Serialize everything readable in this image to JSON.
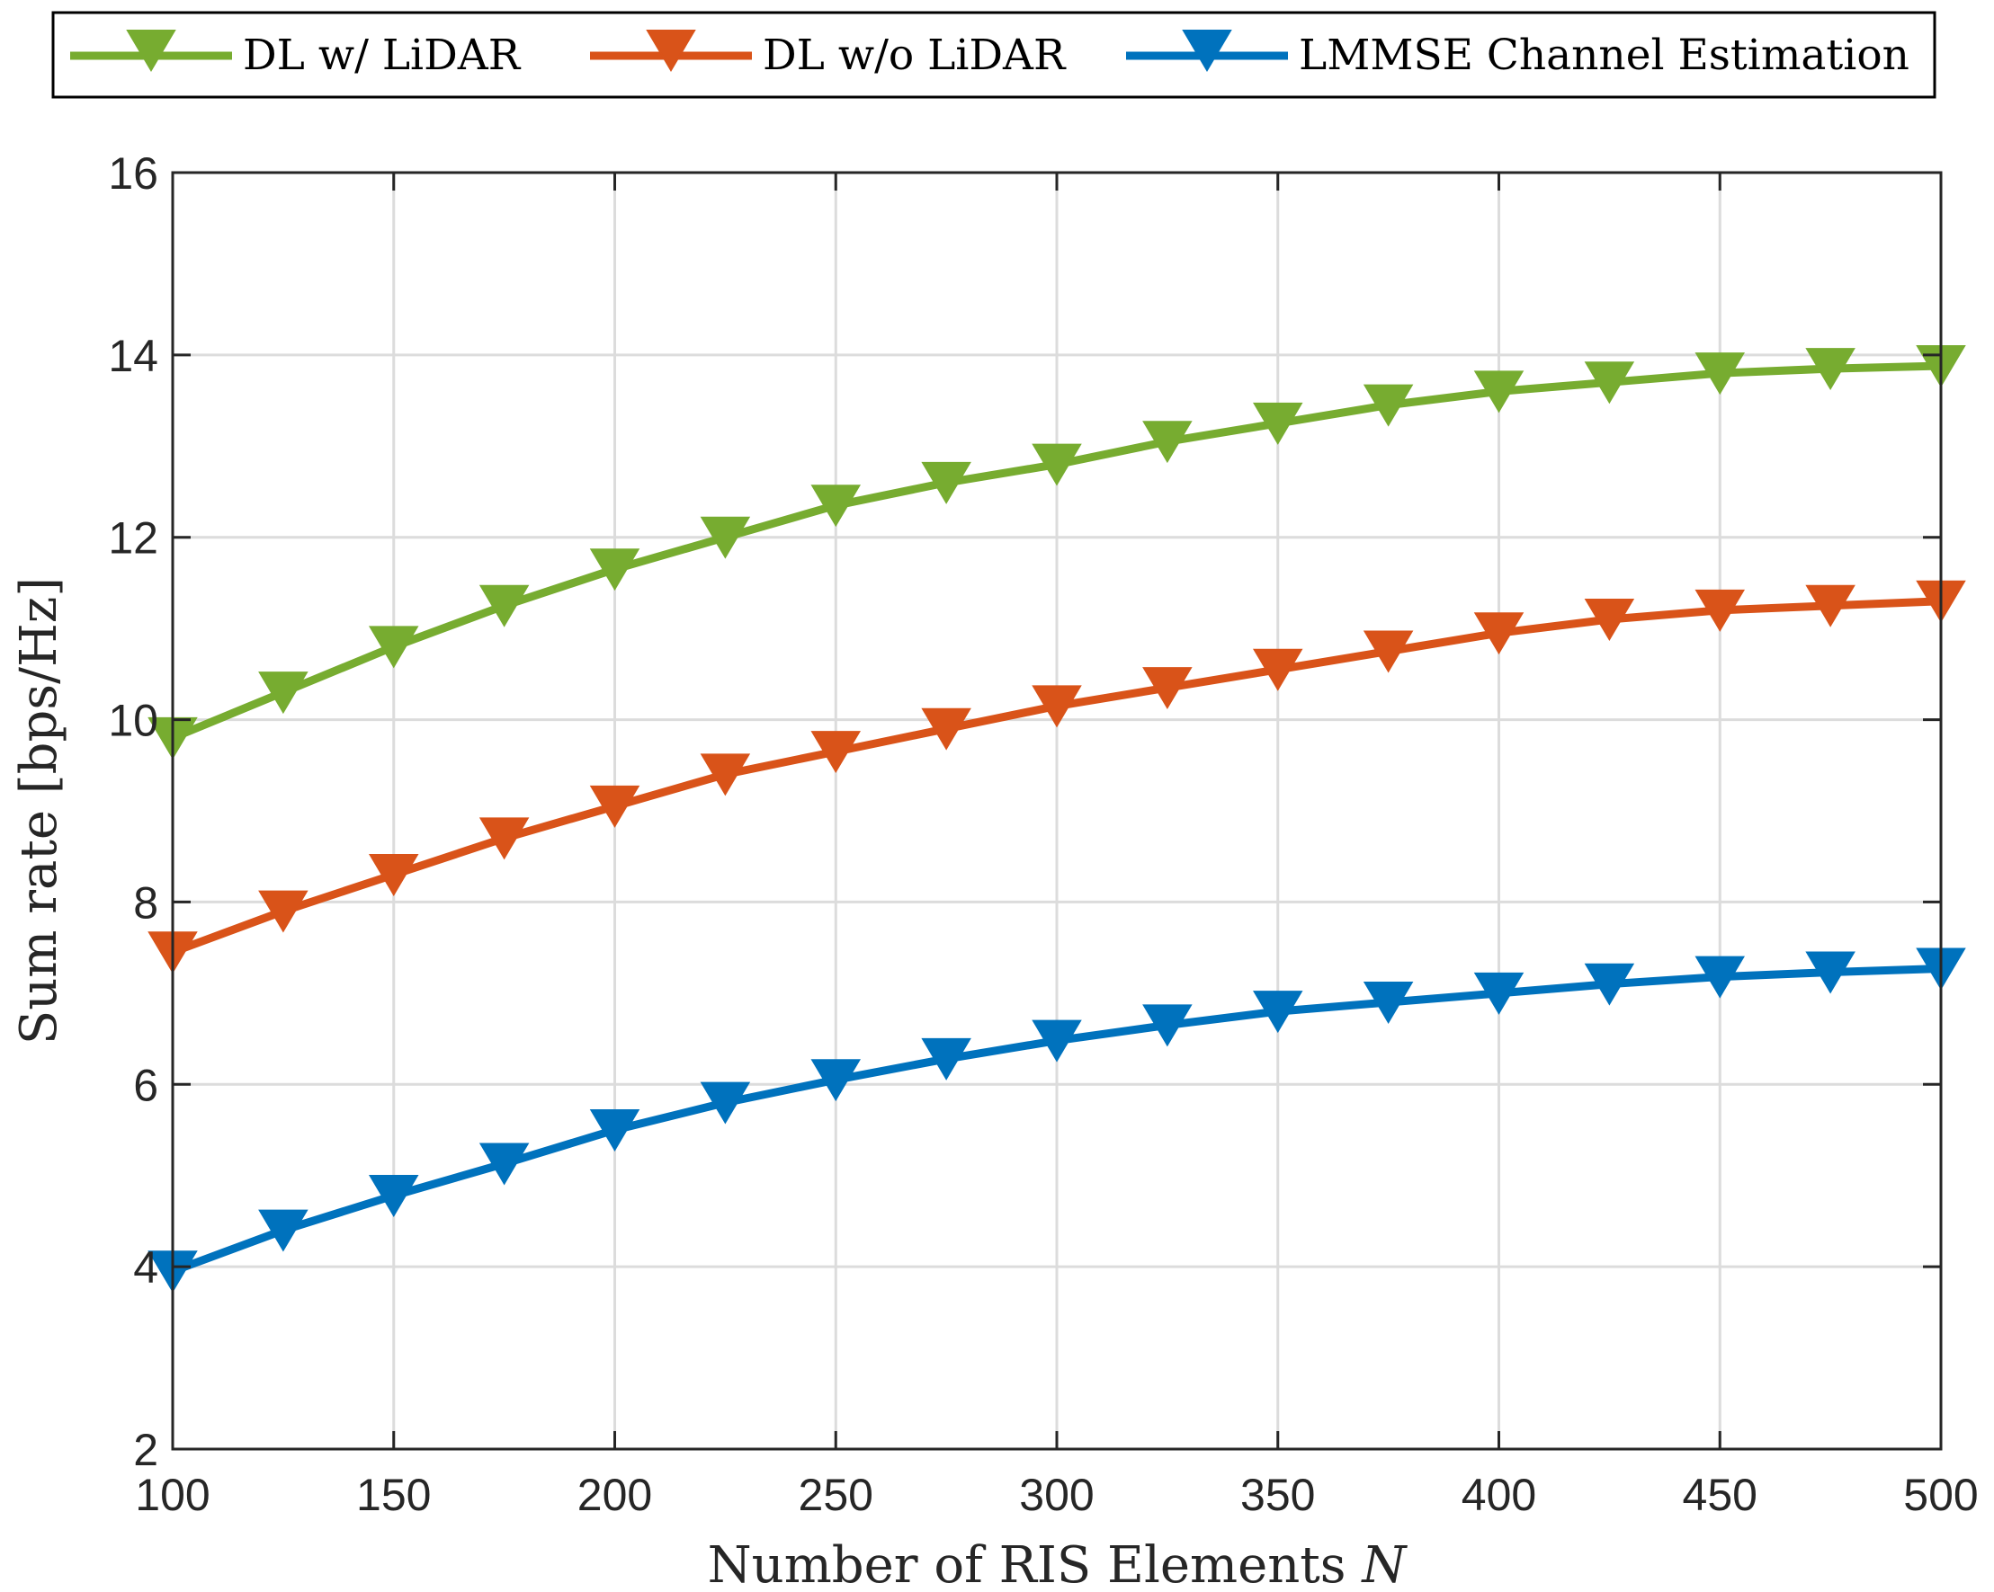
{
  "chart_data": {
    "type": "line",
    "title": "",
    "xlabel": "Number of RIS Elements",
    "xlabel_var": "N",
    "ylabel": "Sum rate [bps/Hz]",
    "xlim": [
      100,
      500
    ],
    "ylim": [
      2,
      16
    ],
    "xticks": [
      100,
      150,
      200,
      250,
      300,
      350,
      400,
      450,
      500
    ],
    "yticks": [
      2,
      4,
      6,
      8,
      10,
      12,
      14,
      16
    ],
    "grid": true,
    "legend_position": "top-outside",
    "x": [
      100,
      125,
      150,
      175,
      200,
      225,
      250,
      275,
      300,
      325,
      350,
      375,
      400,
      425,
      450,
      475,
      500
    ],
    "series": [
      {
        "name": "DL w/ LiDAR",
        "color": "#77ac30",
        "marker": "triangle-down",
        "values": [
          9.8,
          10.3,
          10.8,
          11.25,
          11.65,
          12.0,
          12.35,
          12.6,
          12.8,
          13.05,
          13.25,
          13.45,
          13.6,
          13.7,
          13.8,
          13.85,
          13.88
        ]
      },
      {
        "name": "DL w/o LiDAR",
        "color": "#d95319",
        "marker": "triangle-down",
        "values": [
          7.45,
          7.9,
          8.3,
          8.7,
          9.05,
          9.4,
          9.65,
          9.9,
          10.15,
          10.35,
          10.55,
          10.75,
          10.95,
          11.1,
          11.2,
          11.25,
          11.3
        ]
      },
      {
        "name": "LMMSE Channel Estimation",
        "color": "#0072bd",
        "marker": "triangle-down",
        "values": [
          3.95,
          4.4,
          4.78,
          5.13,
          5.5,
          5.8,
          6.05,
          6.28,
          6.48,
          6.65,
          6.8,
          6.9,
          7.0,
          7.1,
          7.18,
          7.23,
          7.27
        ]
      }
    ]
  }
}
